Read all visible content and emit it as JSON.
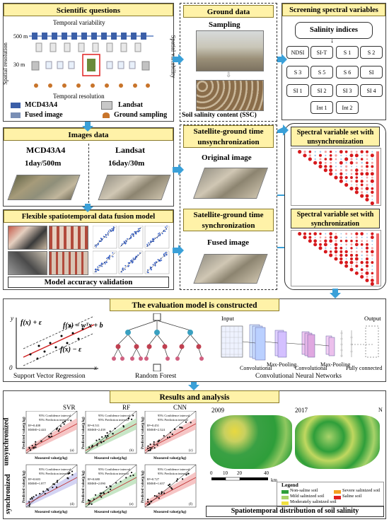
{
  "scientific": {
    "title": "Scientific questions",
    "temporal_variability": "Temporal variability",
    "spatial_resolution": "Spatial resolution",
    "spatial_variability": "Spatial variability",
    "temporal_resolution": "Temporal resolution",
    "res_500": "500 m",
    "res_30": "30 m",
    "legend": [
      "MCD43A4",
      "Landsat",
      "Fused image",
      "Ground sampling"
    ]
  },
  "ground": {
    "title": "Ground data",
    "sampling": "Sampling",
    "ssc": "Soil salinity content (SSC)"
  },
  "screening": {
    "title": "Screening spectral variables",
    "salinity_indices": "Salinity indices",
    "indices": [
      "NDSI",
      "SI-T",
      "S 1",
      "S 2",
      "S 3",
      "S 5",
      "S 6",
      "SI",
      "SI 1",
      "SI 2",
      "SI 3",
      "SI 4",
      "Int 1",
      "Int 2"
    ],
    "unsync_set": "Spectral variable set with unsynchronization",
    "sync_set": "Spectral variable set with synchronization"
  },
  "images": {
    "title": "Images data",
    "mcd": "MCD43A4",
    "mcd_res": "1day/500m",
    "landsat": "Landsat",
    "landsat_res": "16day/30m"
  },
  "unsync": {
    "title": "Satellite-ground time unsynchronization",
    "label": "Original image"
  },
  "sync": {
    "title": "Satellite-ground time synchronization",
    "label": "Fused image"
  },
  "fusion": {
    "title": "Flexible spatiotemporal data fusion model",
    "validation": "Model accuracy validation"
  },
  "evaluation": {
    "title": "The evaluation model is constructed",
    "svr_label": "Support Vector Regression",
    "rf_label": "Random Forest",
    "cnn_label": "Convolutional Neural Networks",
    "cnn_input": "Input",
    "cnn_output": "Output",
    "cnn_layers": [
      "Convolutional",
      "Max-Pooling",
      "Convolutional",
      "Max-Pooling",
      "Fully connected"
    ],
    "svr_eq1": "f(x) + ε",
    "svr_eq2": "f(x) = wᵀx + b",
    "svr_eq3": "f(x) − ε",
    "axis_y": "y",
    "axis_x": "x",
    "axis_0": "0"
  },
  "results": {
    "title": "Results and analysis",
    "models": [
      "SVR",
      "RF",
      "CNN"
    ],
    "row_unsync": "unsynchronized",
    "row_sync": "synchronized",
    "panel_letters": [
      "(a)",
      "(b)",
      "(c)",
      "(d)",
      "(e)",
      "(f)"
    ],
    "xlabel": "Measured value(g/kg)",
    "ylabel": "Predicted value(g/kg)",
    "ci": "95% Confidence interval",
    "pi": "95% Prediction interval",
    "stats": [
      [
        "R²=0.408",
        "RMSE=2.443"
      ],
      [
        "R²=0.511",
        "RMSE=2.439"
      ],
      [
        "R²=0.451",
        "RMSE=2.324"
      ],
      [
        "R²=0.603",
        "RMSE=1.877"
      ],
      [
        "R²=0.680",
        "RMSE=2.090"
      ],
      [
        "R²=0.727",
        "RMSE=1.657"
      ]
    ],
    "year1": "2009",
    "year2": "2017",
    "scale_ticks": [
      "0",
      "10",
      "20",
      "40"
    ],
    "scale_unit": "km",
    "north": "N",
    "legend_title": "Legend",
    "legend_items": [
      {
        "label": "Non-saline soil",
        "color": "#2e9e3a"
      },
      {
        "label": "Severe salinized soil",
        "color": "#f4a020"
      },
      {
        "label": "Mild salinized soil",
        "color": "#a8d36a"
      },
      {
        "label": "Saline soil",
        "color": "#e02020"
      },
      {
        "label": "Moderately salinized soil",
        "color": "#f0e040"
      }
    ],
    "distribution": "Spatiotemporal distribution of soil salinity"
  }
}
